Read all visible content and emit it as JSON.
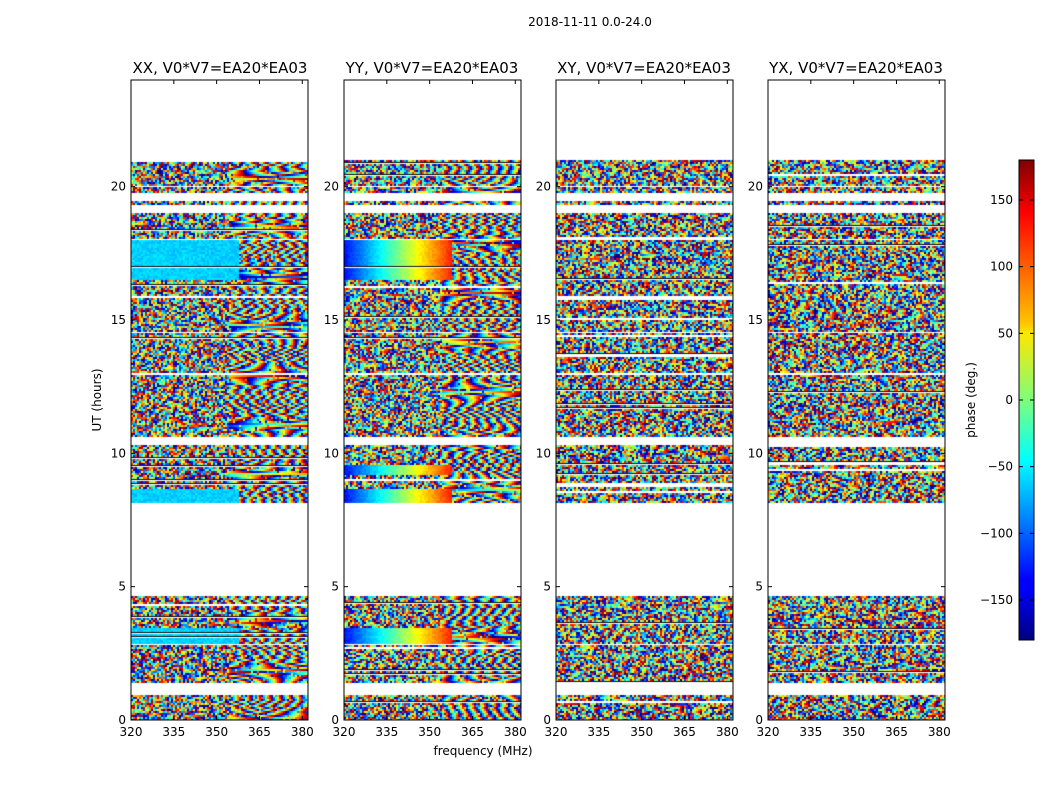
{
  "chart_data": {
    "type": "heatmap",
    "title": "2018-11-11 0.0-24.0",
    "xlabel": "frequency (MHz)",
    "ylabel": "UT (hours)",
    "xlim": [
      320,
      382
    ],
    "ylim": [
      0,
      24
    ],
    "xticks": [
      "320",
      "335",
      "350",
      "365",
      "380"
    ],
    "xtick_values": [
      320,
      335,
      350,
      365,
      380
    ],
    "yticks": [
      "0",
      "5",
      "10",
      "15",
      "20"
    ],
    "ytick_values": [
      0,
      5,
      10,
      15,
      20
    ],
    "colorbar": {
      "label": "phase (deg.)",
      "range": [
        -180,
        180
      ],
      "ticks": [
        "−150",
        "−100",
        "−50",
        "0",
        "50",
        "100",
        "150"
      ],
      "tick_values": [
        -150,
        -100,
        -50,
        0,
        50,
        100,
        150
      ],
      "colormap": "jet"
    },
    "panels": [
      {
        "title": "XX, V0*V7=EA20*EA03",
        "pol": "XX"
      },
      {
        "title": "YY, V0*V7=EA20*EA03",
        "pol": "YY"
      },
      {
        "title": "XY, V0*V7=EA20*EA03",
        "pol": "XY"
      },
      {
        "title": "YX, V0*V7=EA20*EA03",
        "pol": "YX"
      }
    ],
    "data_segments_hours": [
      [
        0.0,
        0.95
      ],
      [
        1.4,
        2.8
      ],
      [
        2.85,
        4.65
      ],
      [
        8.15,
        10.3
      ],
      [
        10.6,
        12.95
      ],
      [
        13.05,
        14.5
      ],
      [
        14.6,
        16.5
      ],
      [
        16.55,
        18.0
      ],
      [
        18.05,
        19.0
      ],
      [
        19.3,
        19.45
      ],
      [
        19.75,
        20.0
      ],
      [
        20.05,
        21.0
      ]
    ],
    "gaps_hours": [
      [
        4.65,
        8.15
      ],
      [
        21.0,
        24.0
      ]
    ]
  }
}
